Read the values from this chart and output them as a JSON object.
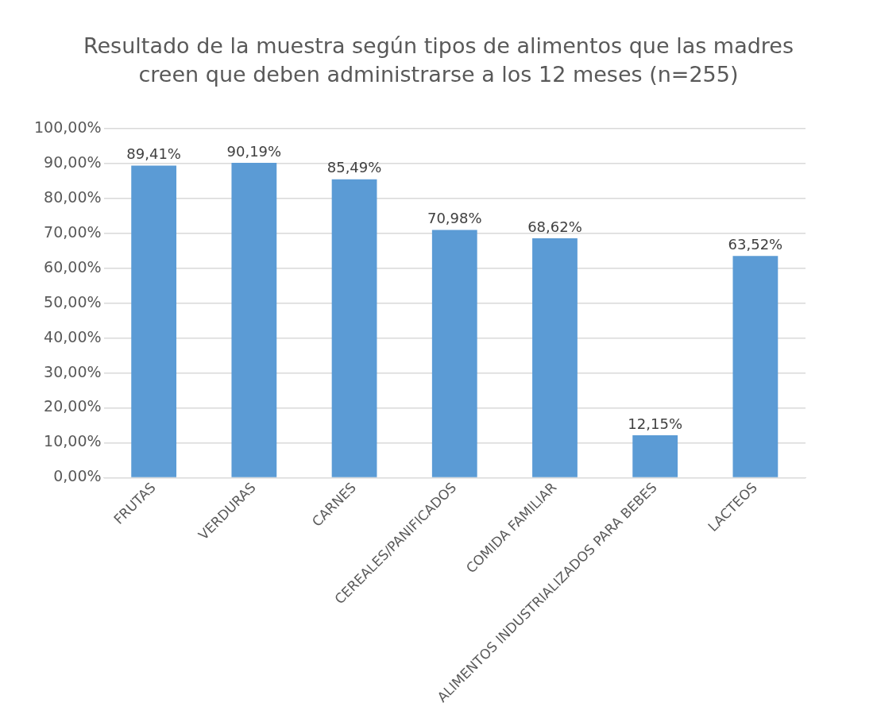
{
  "chart_data": {
    "type": "bar",
    "title": "Resultado de la muestra según tipos de alimentos que las madres creen que deben administrarse a los 12 meses (n=255)",
    "categories": [
      "FRUTAS",
      "VERDURAS",
      "CARNES",
      "CEREALES/PANIFICADOS",
      "COMIDA FAMILIAR",
      "ALIMENTOS INDUSTRIALIZADOS PARA BEBES",
      "LACTEOS"
    ],
    "values": [
      89.41,
      90.19,
      85.49,
      70.98,
      68.62,
      12.15,
      63.52
    ],
    "value_labels": [
      "89,41%",
      "90,19%",
      "85,49%",
      "70,98%",
      "68,62%",
      "12,15%",
      "63,52%"
    ],
    "color": "#5b9bd5",
    "ylim": [
      0,
      100
    ],
    "yticks": [
      {
        "value": 0,
        "label": "0,00%"
      },
      {
        "value": 10,
        "label": "10,00%"
      },
      {
        "value": 20,
        "label": "20,00%"
      },
      {
        "value": 30,
        "label": "30,00%"
      },
      {
        "value": 40,
        "label": "40,00%"
      },
      {
        "value": 50,
        "label": "50,00%"
      },
      {
        "value": 60,
        "label": "60,00%"
      },
      {
        "value": 70,
        "label": "70,00%"
      },
      {
        "value": 80,
        "label": "80,00%"
      },
      {
        "value": 90,
        "label": "90,00%"
      },
      {
        "value": 100,
        "label": "100,00%"
      }
    ],
    "grid": "y"
  }
}
